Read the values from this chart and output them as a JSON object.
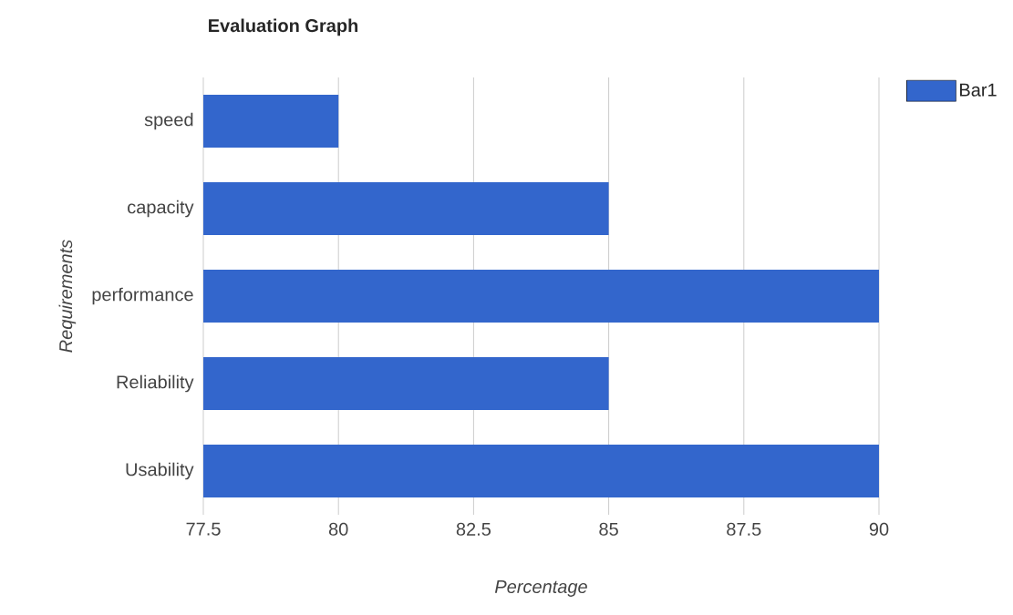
{
  "chart_data": {
    "type": "bar",
    "orientation": "horizontal",
    "title": "Evaluation Graph",
    "xlabel": "Percentage",
    "ylabel": "Requirements",
    "categories": [
      "speed",
      "capacity",
      "performance",
      "Reliability",
      "Usability"
    ],
    "series": [
      {
        "name": "Bar1",
        "color": "#3366cc",
        "values": [
          80,
          85,
          90,
          85,
          90
        ]
      }
    ],
    "xlim": [
      77.5,
      90
    ],
    "xticks": [
      77.5,
      80,
      82.5,
      85,
      87.5,
      90
    ],
    "grid": "x",
    "legend": "top right"
  }
}
